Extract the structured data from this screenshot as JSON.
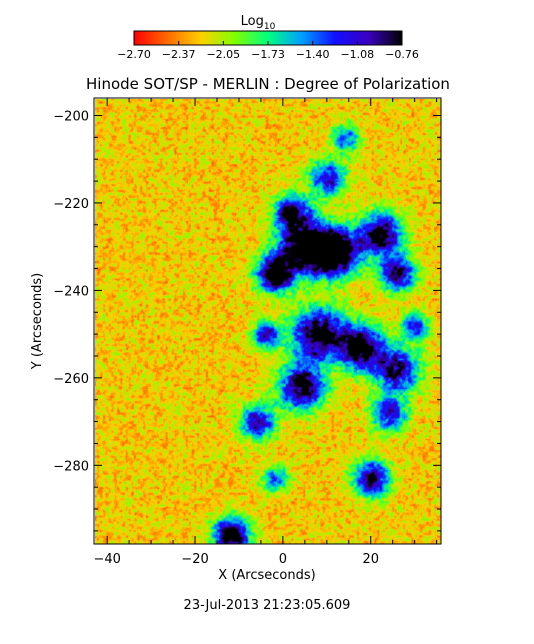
{
  "chart_data": {
    "type": "heatmap",
    "title": "Hinode SOT/SP - MERLIN : Degree of Polarization",
    "xlabel": "X (Arcseconds)",
    "ylabel": "Y (Arcseconds)",
    "xlim": [
      -43,
      36
    ],
    "ylim": [
      -298,
      -196
    ],
    "x_ticks": [
      -40,
      -20,
      0,
      20
    ],
    "x_tick_labels": [
      "−40",
      "−20",
      "0",
      "20"
    ],
    "y_ticks": [
      -200,
      -220,
      -240,
      -260,
      -280
    ],
    "y_tick_labels": [
      "−200",
      "−220",
      "−240",
      "−260",
      "−280"
    ],
    "colorbar": {
      "label_base": "Log",
      "label_subscript": "10",
      "range": [
        -2.7,
        -0.76
      ],
      "ticks": [
        "−2.70",
        "−2.37",
        "−2.05",
        "−1.73",
        "−1.40",
        "−1.08",
        "−0.76"
      ],
      "colors": [
        "#ff0000",
        "#ff6a00",
        "#ffd000",
        "#80ff00",
        "#00ff80",
        "#00a0ff",
        "#1010ff",
        "#3a00c0",
        "#000000"
      ]
    },
    "timestamp": "23-Jul-2013 21:23:05.609"
  }
}
